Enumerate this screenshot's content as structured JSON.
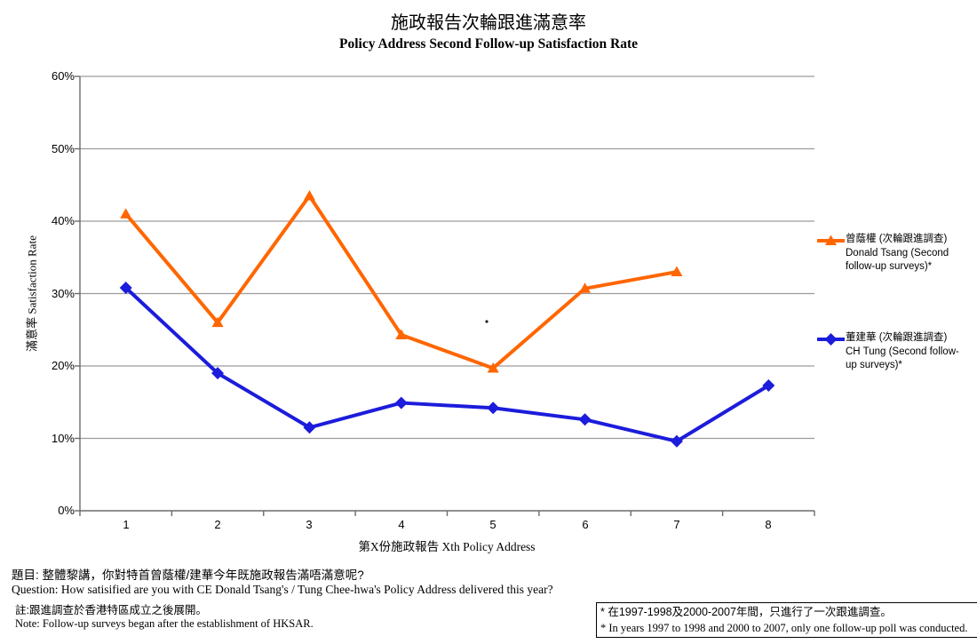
{
  "title": {
    "zh": "施政報告次輪跟進滿意率",
    "en": "Policy Address Second Follow-up Satisfaction Rate"
  },
  "axes": {
    "y_label": "滿意率 Satisfaction Rate",
    "x_label": "第X份施政報告 Xth Policy Address",
    "y_ticks": [
      "60%",
      "50%",
      "40%",
      "30%",
      "20%",
      "10%",
      "0%"
    ],
    "x_ticks": [
      "1",
      "2",
      "3",
      "4",
      "5",
      "6",
      "7",
      "8"
    ]
  },
  "legend": [
    {
      "zh": "曾蔭權 (次輪跟進調查)",
      "en1": "Donald Tsang (Second",
      "en2": "follow-up surveys)*",
      "color": "#FF6600",
      "marker": "triangle"
    },
    {
      "zh": "董建華 (次輪跟進調查)",
      "en1": "CH Tung (Second follow-",
      "en2": "up surveys)*",
      "color": "#1C1CDC",
      "marker": "diamond"
    }
  ],
  "notes": {
    "question_zh": "題目: 整體黎講，你對特首曾蔭權/建華今年既施政報告滿唔滿意呢?",
    "question_en": "Question: How satisified are you with CE Donald Tsang's / Tung Chee-hwa's Policy Address delivered this year?",
    "note_zh": "註:跟進調查於香港特區成立之後展開。",
    "note_en": "Note: Follow-up surveys began after the establishment of HKSAR.",
    "footnote_zh": "* 在1997-1998及2000-2007年間，只進行了一次跟進調查。",
    "footnote_en": "* In years 1997 to 1998 and 2000 to 2007, only one follow-up poll was conducted."
  },
  "chart_data": {
    "type": "line",
    "title": "施政報告次輪跟進滿意率 Policy Address Second Follow-up Satisfaction Rate",
    "xlabel": "第X份施政報告 Xth Policy Address",
    "ylabel": "滿意率 Satisfaction Rate",
    "x": [
      1,
      2,
      3,
      4,
      5,
      6,
      7,
      8
    ],
    "series": [
      {
        "name": "曾蔭權 (次輪跟進調查) Donald Tsang (Second follow-up surveys)*",
        "color": "#FF6600",
        "marker": "triangle",
        "values": [
          41,
          26,
          43.5,
          24.3,
          19.7,
          30.7,
          33,
          null
        ]
      },
      {
        "name": "董建華 (次輪跟進調查) CH Tung (Second follow-up surveys)*",
        "color": "#1C1CDC",
        "marker": "diamond",
        "values": [
          30.8,
          19,
          11.5,
          14.9,
          14.2,
          12.6,
          9.6,
          17.3
        ]
      }
    ],
    "ylim": [
      0,
      60
    ],
    "y_tick_step": 10,
    "y_tick_format": "percent",
    "grid": true,
    "legend_position": "right"
  }
}
